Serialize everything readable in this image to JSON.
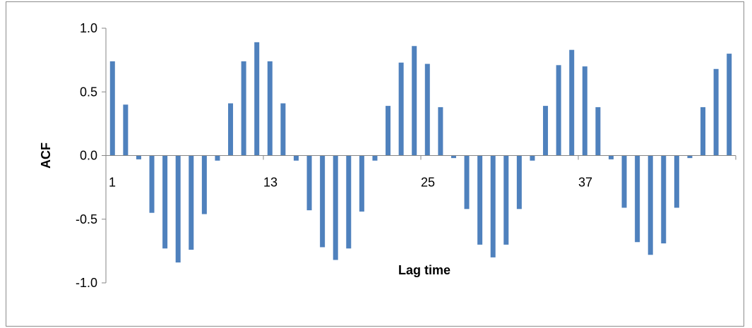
{
  "chart_data": {
    "type": "bar",
    "xlabel": "Lag time",
    "ylabel": "ACF",
    "ylim": [
      -1.0,
      1.0
    ],
    "y_ticks": [
      1.0,
      0.5,
      0.0,
      -0.5,
      -1.0
    ],
    "y_tick_labels": [
      "1.0",
      "0.5",
      "0.0",
      "-0.5",
      "-1.0"
    ],
    "x_tick_labels": [
      "1",
      "13",
      "25",
      "37"
    ],
    "x_tick_positions": [
      1,
      13,
      25,
      37
    ],
    "x": [
      1,
      2,
      3,
      4,
      5,
      6,
      7,
      8,
      9,
      10,
      11,
      12,
      13,
      14,
      15,
      16,
      17,
      18,
      19,
      20,
      21,
      22,
      23,
      24,
      25,
      26,
      27,
      28,
      29,
      30,
      31,
      32,
      33,
      34,
      35,
      36,
      37,
      38,
      39,
      40,
      41,
      42,
      43,
      44,
      45,
      46,
      47,
      48
    ],
    "values": [
      0.74,
      0.4,
      -0.03,
      -0.45,
      -0.73,
      -0.84,
      -0.74,
      -0.46,
      -0.04,
      0.41,
      0.74,
      0.89,
      0.74,
      0.41,
      -0.04,
      -0.43,
      -0.72,
      -0.82,
      -0.73,
      -0.44,
      -0.04,
      0.39,
      0.73,
      0.86,
      0.72,
      0.38,
      -0.02,
      -0.42,
      -0.7,
      -0.8,
      -0.7,
      -0.42,
      -0.04,
      0.39,
      0.71,
      0.83,
      0.7,
      0.38,
      -0.03,
      -0.41,
      -0.68,
      -0.78,
      -0.69,
      -0.41,
      -0.02,
      0.38,
      0.68,
      0.8
    ],
    "bar_color": "#4f81bd",
    "grid": false,
    "legend": "none"
  }
}
